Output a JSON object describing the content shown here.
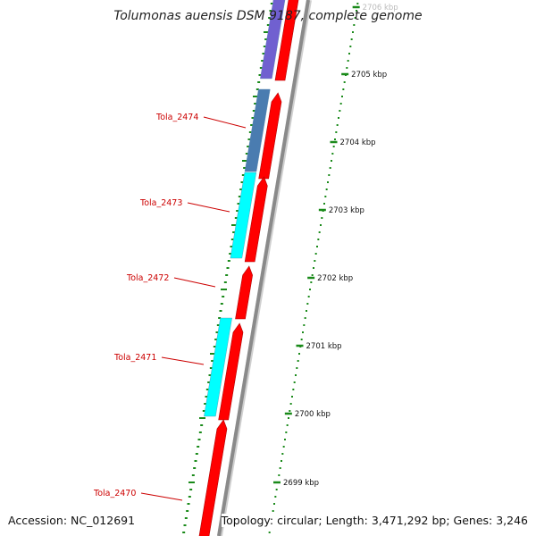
{
  "title": "Tolumonas auensis DSM 9187, complete genome",
  "accession": "Accession: NC_012691",
  "summary": "Topology: circular; Length: 3,471,292 bp; Genes: 3,246",
  "colors": {
    "forward_cds": "#ff0000",
    "reverse_cds_cyan": "#00ffff",
    "reverse_cds_steel": "#4a7cb0",
    "reverse_cds_purple": "#7060d0",
    "backbone": "#8a8a8a",
    "ticks": "#1a8a1a",
    "gene_labels": "#cc0000",
    "scale_labels": "#111111"
  },
  "scale_labels": [
    "2706 kbp",
    "2705 kbp",
    "2704 kbp",
    "2703 kbp",
    "2702 kbp",
    "2701 kbp",
    "2700 kbp",
    "2699 kbp"
  ],
  "gene_labels": [
    "Tola_2474",
    "Tola_2473",
    "Tola_2472",
    "Tola_2471",
    "Tola_2470"
  ]
}
